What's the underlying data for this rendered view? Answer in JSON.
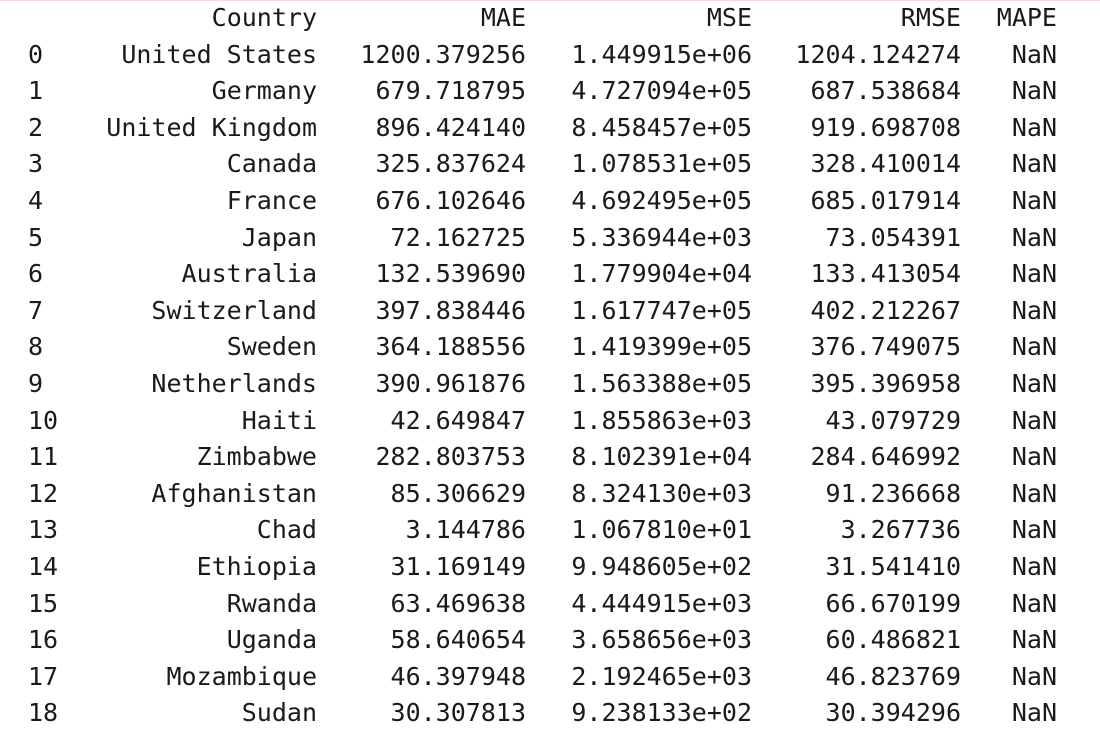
{
  "table": {
    "columns": [
      "",
      "Country",
      "MAE",
      "MSE",
      "RMSE",
      "MAPE"
    ],
    "rows": [
      [
        "0",
        "United States",
        "1200.379256",
        "1.449915e+06",
        "1204.124274",
        "NaN"
      ],
      [
        "1",
        "Germany",
        "679.718795",
        "4.727094e+05",
        "687.538684",
        "NaN"
      ],
      [
        "2",
        "United Kingdom",
        "896.424140",
        "8.458457e+05",
        "919.698708",
        "NaN"
      ],
      [
        "3",
        "Canada",
        "325.837624",
        "1.078531e+05",
        "328.410014",
        "NaN"
      ],
      [
        "4",
        "France",
        "676.102646",
        "4.692495e+05",
        "685.017914",
        "NaN"
      ],
      [
        "5",
        "Japan",
        "72.162725",
        "5.336944e+03",
        "73.054391",
        "NaN"
      ],
      [
        "6",
        "Australia",
        "132.539690",
        "1.779904e+04",
        "133.413054",
        "NaN"
      ],
      [
        "7",
        "Switzerland",
        "397.838446",
        "1.617747e+05",
        "402.212267",
        "NaN"
      ],
      [
        "8",
        "Sweden",
        "364.188556",
        "1.419399e+05",
        "376.749075",
        "NaN"
      ],
      [
        "9",
        "Netherlands",
        "390.961876",
        "1.563388e+05",
        "395.396958",
        "NaN"
      ],
      [
        "10",
        "Haiti",
        "42.649847",
        "1.855863e+03",
        "43.079729",
        "NaN"
      ],
      [
        "11",
        "Zimbabwe",
        "282.803753",
        "8.102391e+04",
        "284.646992",
        "NaN"
      ],
      [
        "12",
        "Afghanistan",
        "85.306629",
        "8.324130e+03",
        "91.236668",
        "NaN"
      ],
      [
        "13",
        "Chad",
        "3.144786",
        "1.067810e+01",
        "3.267736",
        "NaN"
      ],
      [
        "14",
        "Ethiopia",
        "31.169149",
        "9.948605e+02",
        "31.541410",
        "NaN"
      ],
      [
        "15",
        "Rwanda",
        "63.469638",
        "4.444915e+03",
        "66.670199",
        "NaN"
      ],
      [
        "16",
        "Uganda",
        "58.640654",
        "3.658656e+03",
        "60.486821",
        "NaN"
      ],
      [
        "17",
        "Mozambique",
        "46.397948",
        "2.192465e+03",
        "46.823769",
        "NaN"
      ],
      [
        "18",
        "Sudan",
        "30.307813",
        "9.238133e+02",
        "30.394296",
        "NaN"
      ]
    ]
  }
}
